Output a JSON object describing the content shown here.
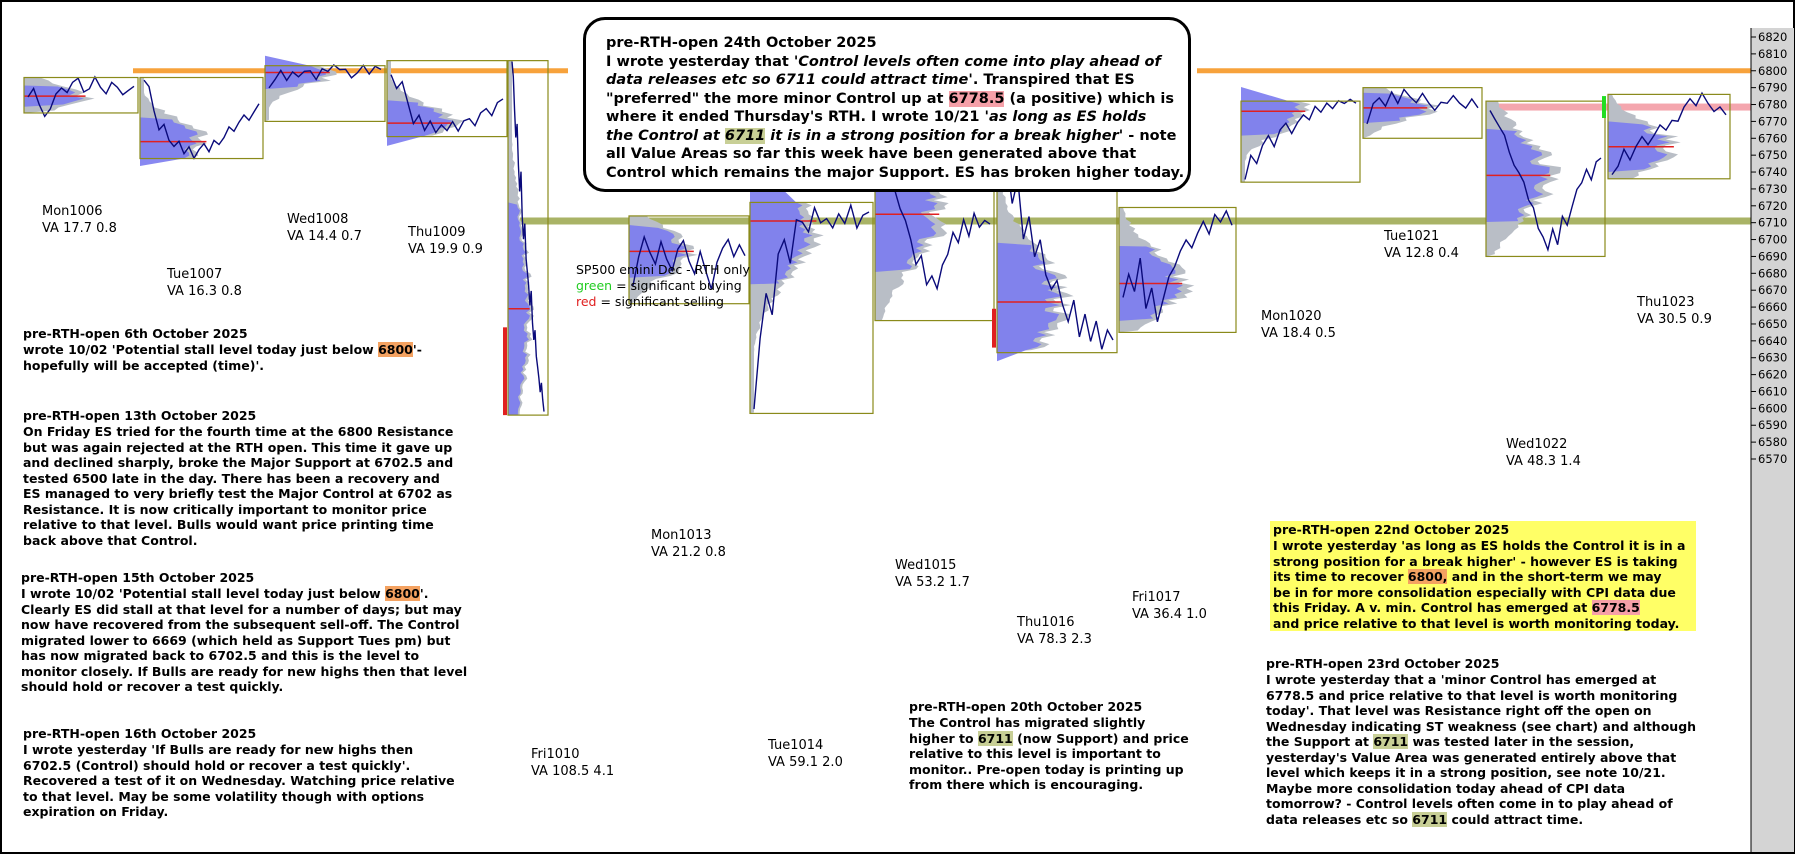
{
  "chart_data": {
    "type": "line",
    "title": "SP500 emini  Dec - RTH only",
    "legend": [
      {
        "color_word": "green",
        "text": "= significant buying",
        "color": "#22cc22"
      },
      {
        "color_word": "red",
        "text": "= significant selling",
        "color": "#e02020"
      }
    ],
    "ylim": [
      6564,
      6824
    ],
    "y_ticks": [
      6570,
      6580,
      6590,
      6600,
      6610,
      6620,
      6630,
      6640,
      6650,
      6660,
      6670,
      6680,
      6690,
      6700,
      6710,
      6720,
      6730,
      6740,
      6750,
      6760,
      6770,
      6780,
      6790,
      6800,
      6810,
      6820
    ],
    "grid": false,
    "levels": [
      {
        "name": "Resistance",
        "value": 6800,
        "color": "#f7a23b"
      },
      {
        "name": "Control",
        "value": 6711,
        "color": "#9aa64b"
      },
      {
        "name": "minor Control",
        "value": 6778.5,
        "color": "#f4a6ae"
      }
    ],
    "days": [
      {
        "label": "Mon1006",
        "va": "VA 17.7  0.8",
        "open": 6788,
        "close": 6790,
        "high": 6795,
        "low": 6768,
        "box_top": 6796,
        "box_bottom": 6775,
        "control": 6785,
        "path": [
          6785,
          6788,
          6780,
          6772,
          6778,
          6785,
          6790,
          6787,
          6792,
          6794,
          6789,
          6791,
          6795,
          6790,
          6788,
          6792,
          6790,
          6786,
          6789,
          6790
        ]
      },
      {
        "label": "Tue1007",
        "va": "VA 16.3  0.8",
        "open": 6798,
        "close": 6760,
        "high": 6800,
        "low": 6748,
        "box_top": 6796,
        "box_bottom": 6748,
        "control": 6758,
        "path": [
          6796,
          6790,
          6776,
          6765,
          6768,
          6760,
          6755,
          6758,
          6750,
          6754,
          6749,
          6752,
          6756,
          6753,
          6760,
          6758,
          6762,
          6768,
          6765,
          6770,
          6774,
          6769,
          6775,
          6780
        ]
      },
      {
        "label": "Wed1008",
        "va": "VA 14.4  0.7",
        "open": 6785,
        "close": 6800,
        "high": 6803,
        "low": 6784,
        "box_top": 6803,
        "box_bottom": 6770,
        "control": 6799,
        "path": [
          6789,
          6793,
          6799,
          6795,
          6800,
          6797,
          6801,
          6799,
          6796,
          6800,
          6798,
          6802,
          6799,
          6801,
          6797,
          6800,
          6802,
          6798,
          6801,
          6800
        ]
      },
      {
        "label": "Thu1009",
        "va": "VA 19.9  0.9",
        "open": 6800,
        "close": 6783,
        "high": 6806,
        "low": 6761,
        "box_top": 6806,
        "box_bottom": 6761,
        "control": 6769,
        "path": [
          6799,
          6788,
          6792,
          6780,
          6768,
          6772,
          6765,
          6770,
          6763,
          6768,
          6766,
          6770,
          6764,
          6769,
          6773,
          6768,
          6775,
          6779,
          6774,
          6781,
          6785
        ]
      },
      {
        "label": "Fri1010",
        "va": "VA 108.5  4.1",
        "open": 6806,
        "close": 6599,
        "high": 6806,
        "low": 6596,
        "box_top": 6806,
        "box_bottom": 6596,
        "control": 6659,
        "path": [
          6805,
          6795,
          6775,
          6760,
          6770,
          6745,
          6730,
          6740,
          6715,
          6700,
          6708,
          6690,
          6680,
          6672,
          6660,
          6668,
          6650,
          6640,
          6648,
          6632,
          6625,
          6618,
          6608,
          6615,
          6604,
          6598
        ]
      },
      {
        "label": "Mon1013",
        "va": "VA 21.2  0.8",
        "open": 6712,
        "close": 6690,
        "high": 6714,
        "low": 6660,
        "box_top": 6714,
        "box_bottom": 6662,
        "control": 6693,
        "path": [
          6672,
          6690,
          6700,
          6693,
          6685,
          6698,
          6690,
          6682,
          6693,
          6700,
          6688,
          6678,
          6692,
          6680,
          6670,
          6685,
          6694,
          6700,
          6690,
          6697,
          6692
        ]
      },
      {
        "label": "Tue1014",
        "va": "VA 59.1  2.0",
        "open": 6630,
        "close": 6715,
        "high": 6722,
        "low": 6597,
        "box_top": 6722,
        "box_bottom": 6597,
        "control": 6711,
        "path": [
          6600,
          6640,
          6668,
          6655,
          6690,
          6700,
          6685,
          6710,
          6712,
          6705,
          6718,
          6709,
          6714,
          6706,
          6716,
          6710,
          6720,
          6708,
          6713,
          6715
        ]
      },
      {
        "label": "Wed1015",
        "va": "VA 53.2  1.7",
        "open": 6765,
        "close": 6711,
        "high": 6766,
        "low": 6652,
        "box_top": 6766,
        "box_bottom": 6652,
        "control": 6715,
        "path": [
          6759,
          6764,
          6745,
          6730,
          6720,
          6710,
          6700,
          6685,
          6690,
          6672,
          6678,
          6670,
          6684,
          6690,
          6703,
          6697,
          6711,
          6702,
          6715,
          6706,
          6712,
          6708
        ]
      },
      {
        "label": "Thu1016",
        "va": "VA 78.3  2.3",
        "open": 6735,
        "close": 6640,
        "high": 6750,
        "low": 6633,
        "box_top": 6750,
        "box_bottom": 6633,
        "control": 6663,
        "path": [
          6730,
          6748,
          6720,
          6735,
          6700,
          6715,
          6690,
          6700,
          6680,
          6670,
          6675,
          6660,
          6650,
          6663,
          6642,
          6655,
          6640,
          6650,
          6634,
          6648,
          6640
        ]
      },
      {
        "label": "Fri1017",
        "va": "VA 36.4  1.0",
        "open": 6645,
        "close": 6710,
        "high": 6719,
        "low": 6641,
        "box_top": 6719,
        "box_bottom": 6645,
        "control": 6674,
        "path": [
          6665,
          6680,
          6670,
          6690,
          6660,
          6672,
          6650,
          6666,
          6678,
          6685,
          6693,
          6700,
          6694,
          6705,
          6710,
          6704,
          6715,
          6709,
          6718,
          6710
        ]
      },
      {
        "label": "Mon1020",
        "va": "VA 18.4  0.5",
        "open": 6735,
        "close": 6780,
        "high": 6782,
        "low": 6734,
        "box_top": 6782,
        "box_bottom": 6734,
        "control": 6776,
        "path": [
          6736,
          6750,
          6745,
          6755,
          6760,
          6756,
          6765,
          6768,
          6763,
          6770,
          6774,
          6770,
          6778,
          6775,
          6780,
          6778,
          6781,
          6779,
          6782,
          6780
        ]
      },
      {
        "label": "Tue1021",
        "va": "VA 12.8  0.4",
        "open": 6780,
        "close": 6778,
        "high": 6790,
        "low": 6765,
        "box_top": 6790,
        "box_bottom": 6760,
        "control": 6778,
        "path": [
          6770,
          6780,
          6784,
          6778,
          6786,
          6782,
          6788,
          6784,
          6780,
          6786,
          6781,
          6778,
          6783,
          6779,
          6785,
          6781,
          6777,
          6782,
          6778
        ]
      },
      {
        "label": "Wed1022",
        "va": "VA 48.3  1.4",
        "open": 6778,
        "close": 6729,
        "high": 6782,
        "low": 6690,
        "box_top": 6782,
        "box_bottom": 6690,
        "control": 6738,
        "path": [
          6778,
          6772,
          6765,
          6760,
          6752,
          6745,
          6740,
          6733,
          6725,
          6718,
          6708,
          6700,
          6693,
          6705,
          6697,
          6712,
          6708,
          6720,
          6728,
          6735,
          6740,
          6736,
          6745,
          6750
        ]
      },
      {
        "label": "Thu1023",
        "va": "VA 30.5  0.9",
        "open": 6740,
        "close": 6775,
        "high": 6786,
        "low": 6736,
        "box_top": 6786,
        "box_bottom": 6736,
        "control": 6755,
        "path": [
          6740,
          6745,
          6752,
          6748,
          6756,
          6760,
          6755,
          6762,
          6768,
          6765,
          6772,
          6770,
          6778,
          6782,
          6779,
          6785,
          6781,
          6777,
          6780,
          6775
        ]
      }
    ]
  },
  "notes": {
    "n1": {
      "title": "pre-RTH-open 6th October 2025",
      "l1": "wrote 10/02 'Potential stall level today just below ",
      "hl": "6800",
      "l2": "'-",
      "l3": "hopefully will be accepted (time)'."
    },
    "n2": {
      "title": "pre-RTH-open 13th October 2025",
      "body": [
        "On Friday ES tried for the fourth time at the 6800 Resistance",
        "but was again rejected at the RTH open. This time it gave up",
        "and declined sharply, broke the Major Support at 6702.5 and",
        "tested 6500 late in the day. There has been a recovery and",
        "ES managed to very briefly test the Major Control at 6702 as",
        "Resistance. It is now critically important to monitor price",
        "relative to that level. Bulls would want price printing time",
        "back above that Control."
      ]
    },
    "n3": {
      "title": "pre-RTH-open 15th October 2025",
      "l1": "I wrote 10/02 'Potential stall level today just below ",
      "hl": "6800",
      "l1b": "'.",
      "body": [
        "Clearly ES did stall at that level for a number of days; but may",
        "now have recovered from the subsequent sell-off. The Control",
        "migrated lower to 6669 (which held as Support Tues pm) but",
        "has now migrated back to 6702.5 and this is the level to",
        "monitor closely. If Bulls are ready for new highs then that level",
        "should hold or recover a test quickly."
      ]
    },
    "n4": {
      "title": "pre-RTH-open 16th October 2025",
      "body": [
        "I wrote yesterday 'If Bulls are ready for new highs then",
        "6702.5 (Control) should hold or recover a test quickly'.",
        "Recovered a test of it on Wednesday. Watching price relative",
        "to that level. May be some volatility though with options",
        "expiration on Friday."
      ]
    },
    "n5": {
      "title": "pre-RTH-open 20th October 2025",
      "l1": "The Control has migrated slightly",
      "l2a": "higher to ",
      "hl": "6711",
      "l2b": " (now Support) and price",
      "body": [
        "relative to this level is important to",
        "monitor.. Pre-open today is printing up",
        "from there which is encouraging."
      ]
    },
    "n6": {
      "title": "pre-RTH-open 22nd October 2025",
      "l1": "I wrote yesterday 'as long as ES holds the Control it is in a",
      "l2": "strong position for a break higher' - however ES is taking",
      "l3a": "its time to recover ",
      "hl1": "6800,",
      "l3b": "  and in the short-term we may",
      "l4": "be in for more consolidation especially with CPI data due",
      "l5a": "this Friday. A v. min. Control has emerged at ",
      "hl2": "6778.5",
      "l6": "and price relative to that level is worth monitoring today."
    },
    "n7": {
      "title": "pre-RTH-open 23rd October 2025",
      "body": [
        "I wrote yesterday that a 'minor Control has emerged at",
        "6778.5 and price relative to that level is worth monitoring",
        "today'. That level was Resistance right off the open on",
        "Wednesday indicating ST weakness (see chart) and although"
      ],
      "l5a": "the Support at ",
      "hl1": "6711",
      "l5b": " was tested later in the session,",
      "body2": [
        "yesterday's Value Area was generated entirely above that",
        "level which keeps it in a strong position, see note 10/21.",
        "Maybe more consolidation today ahead of CPI data",
        "tomorrow? - Control levels often come in to play ahead of"
      ],
      "l10a": "data releases etc so ",
      "hl2": "6711",
      "l10b": " could attract time."
    },
    "bubble": {
      "title": "pre-RTH-open 24th October 2025",
      "l1a": "I wrote yesterday that '",
      "l1i": "Control levels often come into play ahead of",
      "l2i": "data releases etc so 6711 could attract time",
      "l2b": "'. Transpired that ES",
      "l3": "\"preferred\" the more minor Control up at ",
      "hl1": "6778.5",
      "l3b": " (a positive) which is",
      "l4a": "where it ended Thursday's RTH. I wrote 10/21 '",
      "l4i": "as long as ES holds",
      "l5i": "the Control at ",
      "hl2": "6711",
      "l5i2": " it is in a strong position for a break higher",
      "l5b": "' - note",
      "l6": "all Value Areas so far this week have been generated above that",
      "l7": "Control which remains the major Support. ES has broken higher today."
    }
  }
}
